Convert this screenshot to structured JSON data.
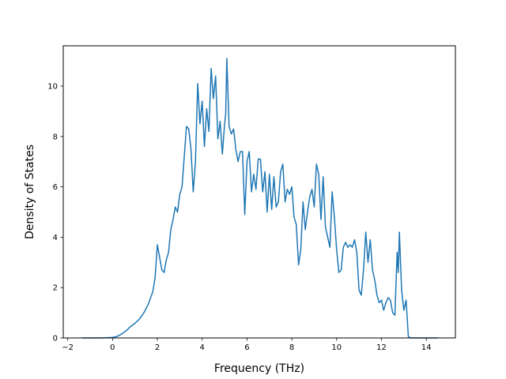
{
  "chart_data": {
    "type": "line",
    "title": "",
    "xlabel": "Frequency (THz)",
    "ylabel": "Density of States",
    "xlim": [
      -2.2,
      15.3
    ],
    "ylim": [
      0,
      11.6
    ],
    "xticks": [
      -2,
      0,
      2,
      4,
      6,
      8,
      10,
      12,
      14
    ],
    "yticks": [
      0,
      2,
      4,
      6,
      8,
      10
    ],
    "xtick_labels": [
      "−2",
      "0",
      "2",
      "4",
      "6",
      "8",
      "10",
      "12",
      "14"
    ],
    "ytick_labels": [
      "0",
      "2",
      "4",
      "6",
      "8",
      "10"
    ],
    "grid": false,
    "series": [
      {
        "color": "#1f77b4",
        "x": [
          -1.35,
          -0.5,
          0.0,
          0.2,
          0.4,
          0.6,
          0.8,
          1.0,
          1.2,
          1.4,
          1.6,
          1.8,
          1.9,
          2.0,
          2.1,
          2.2,
          2.3,
          2.4,
          2.5,
          2.6,
          2.7,
          2.8,
          2.9,
          3.0,
          3.1,
          3.2,
          3.3,
          3.4,
          3.5,
          3.6,
          3.7,
          3.8,
          3.9,
          4.0,
          4.1,
          4.2,
          4.3,
          4.4,
          4.5,
          4.6,
          4.7,
          4.8,
          4.9,
          5.0,
          5.05,
          5.1,
          5.2,
          5.3,
          5.4,
          5.5,
          5.6,
          5.7,
          5.8,
          5.9,
          6.0,
          6.1,
          6.2,
          6.3,
          6.4,
          6.5,
          6.6,
          6.7,
          6.8,
          6.9,
          7.0,
          7.1,
          7.2,
          7.3,
          7.4,
          7.5,
          7.6,
          7.7,
          7.8,
          7.9,
          8.0,
          8.1,
          8.2,
          8.3,
          8.4,
          8.5,
          8.6,
          8.7,
          8.8,
          8.9,
          9.0,
          9.1,
          9.2,
          9.3,
          9.4,
          9.5,
          9.6,
          9.7,
          9.8,
          9.9,
          10.0,
          10.1,
          10.2,
          10.3,
          10.4,
          10.5,
          10.6,
          10.7,
          10.8,
          10.9,
          11.0,
          11.1,
          11.2,
          11.3,
          11.4,
          11.5,
          11.6,
          11.7,
          11.8,
          11.9,
          12.0,
          12.1,
          12.2,
          12.3,
          12.4,
          12.5,
          12.6,
          12.7,
          12.75,
          12.8,
          12.9,
          13.0,
          13.1,
          13.2,
          13.3,
          13.6,
          14.5
        ],
        "y": [
          0,
          0,
          0.02,
          0.06,
          0.15,
          0.28,
          0.45,
          0.58,
          0.75,
          1.0,
          1.35,
          1.85,
          2.4,
          3.7,
          3.2,
          2.7,
          2.6,
          3.1,
          3.4,
          4.3,
          4.7,
          5.2,
          5.0,
          5.7,
          6.0,
          7.2,
          8.4,
          8.3,
          7.5,
          5.8,
          7.0,
          10.1,
          8.5,
          9.4,
          7.6,
          9.1,
          8.2,
          10.7,
          9.5,
          10.4,
          7.9,
          8.6,
          7.3,
          8.5,
          8.9,
          11.1,
          8.4,
          8.1,
          8.3,
          7.5,
          7.0,
          7.4,
          7.4,
          4.9,
          7.0,
          7.4,
          5.8,
          6.5,
          5.9,
          7.1,
          7.1,
          5.8,
          6.6,
          5.0,
          6.5,
          5.1,
          6.4,
          5.2,
          5.4,
          6.6,
          6.9,
          5.4,
          5.9,
          5.7,
          6.0,
          4.8,
          4.5,
          2.9,
          3.5,
          5.4,
          4.3,
          5.0,
          5.6,
          5.9,
          5.2,
          6.9,
          6.5,
          4.7,
          6.4,
          4.4,
          4.0,
          3.6,
          5.8,
          4.8,
          3.5,
          2.6,
          2.7,
          3.6,
          3.8,
          3.6,
          3.7,
          3.6,
          3.9,
          3.4,
          1.9,
          1.7,
          2.7,
          4.2,
          3.0,
          3.9,
          2.7,
          2.3,
          1.7,
          1.4,
          1.5,
          1.1,
          1.4,
          1.6,
          1.5,
          1.0,
          0.9,
          3.4,
          2.6,
          4.2,
          1.9,
          1.1,
          1.5,
          0.05,
          0,
          0,
          0
        ]
      }
    ]
  }
}
